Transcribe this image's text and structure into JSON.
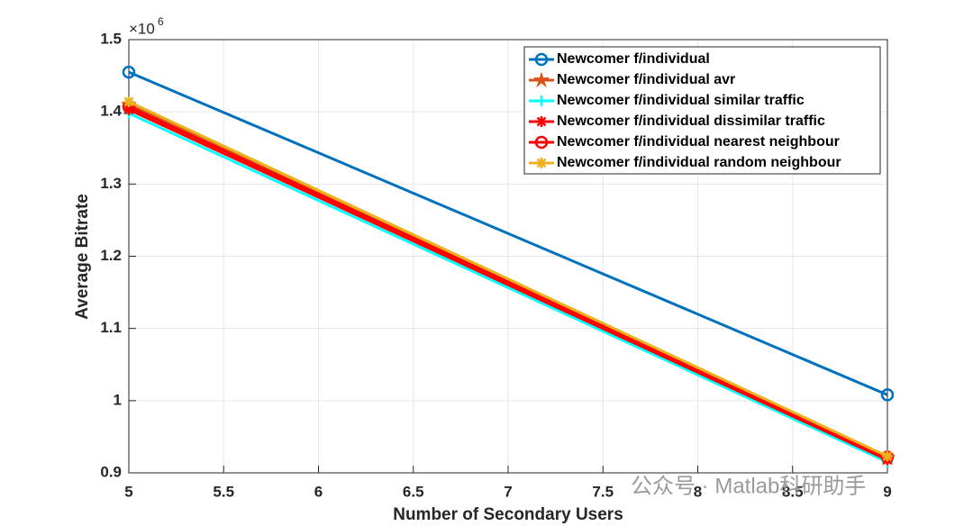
{
  "chart_data": {
    "type": "line",
    "xlabel": "Number of Secondary Users",
    "ylabel": "Average Bitrate",
    "y_multiplier": {
      "base": "×10",
      "exponent": "6"
    },
    "x": [
      5,
      9
    ],
    "xlim": [
      5,
      9
    ],
    "xticks": [
      5,
      5.5,
      6,
      6.5,
      7,
      7.5,
      8,
      8.5,
      9
    ],
    "ylim": [
      0.9,
      1.5
    ],
    "yticks": [
      0.9,
      1,
      1.1,
      1.2,
      1.3,
      1.4,
      1.5
    ],
    "grid": true,
    "legend_position": "top-right",
    "series": [
      {
        "name": "Newcomer f/individual",
        "color": "#0072BD",
        "marker": "circle",
        "values": [
          1.455,
          1.008
        ]
      },
      {
        "name": "Newcomer f/individual avr",
        "color": "#D95319",
        "marker": "star",
        "values": [
          1.41,
          0.921
        ]
      },
      {
        "name": "Newcomer f/individual similar traffic",
        "color": "#00FFFF",
        "marker": "plus",
        "values": [
          1.398,
          0.915
        ]
      },
      {
        "name": "Newcomer f/individual dissimilar traffic",
        "color": "#FF0000",
        "marker": "asterisk",
        "values": [
          1.403,
          0.918
        ]
      },
      {
        "name": "Newcomer f/individual nearest neighbour",
        "color": "#FF0000",
        "marker": "circle",
        "values": [
          1.407,
          0.922
        ]
      },
      {
        "name": "Newcomer f/individual random neighbour",
        "color": "#EDB120",
        "marker": "asterisk",
        "values": [
          1.414,
          0.923
        ]
      }
    ]
  },
  "watermark": "公众号 · Matlab科研助手"
}
